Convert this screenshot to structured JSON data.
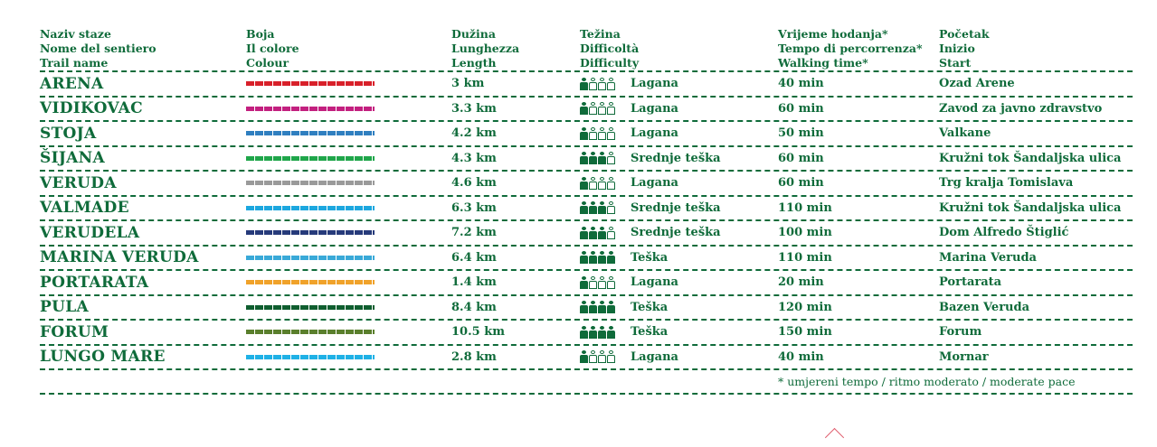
{
  "headers": {
    "name": [
      "Naziv staze",
      "Nome del sentiero",
      "Trail name"
    ],
    "color": [
      "Boja",
      "Il colore",
      "Colour"
    ],
    "length": [
      "Dužina",
      "Lunghezza",
      "Length"
    ],
    "difficulty": [
      "Težina",
      "Difficoltà",
      "Difficulty"
    ],
    "time": [
      "Vrijeme hodanja*",
      "Tempo di percorrenza*",
      "Walking time*"
    ],
    "start": [
      "Početak",
      "Inizio",
      "Start"
    ]
  },
  "rows": [
    {
      "name": "ARENA",
      "color": "#d8202a",
      "length": "3 km",
      "difficulty_level": 1,
      "difficulty": "Lagana",
      "time": "40 min",
      "start": "Ozad Arene"
    },
    {
      "name": "VIDIKOVAC",
      "color": "#c3207f",
      "length": "3.3 km",
      "difficulty_level": 1,
      "difficulty": "Lagana",
      "time": "60 min",
      "start": "Zavod za javno zdravstvo"
    },
    {
      "name": "STOJA",
      "color": "#2f7fc0",
      "length": "4.2 km",
      "difficulty_level": 1,
      "difficulty": "Lagana",
      "time": "50 min",
      "start": "Valkane"
    },
    {
      "name": "ŠIJANA",
      "color": "#1fa64a",
      "length": "4.3 km",
      "difficulty_level": 3,
      "difficulty": "Srednje teška",
      "time": "60 min",
      "start": "Kružni tok Šandaljska ulica"
    },
    {
      "name": "VERUDA",
      "color": "#9a9a9a",
      "length": "4.6 km",
      "difficulty_level": 1,
      "difficulty": "Lagana",
      "time": "60 min",
      "start": "Trg kralja Tomislava"
    },
    {
      "name": "VALMADE",
      "color": "#1ca7df",
      "length": "6.3 km",
      "difficulty_level": 3,
      "difficulty": "Srednje teška",
      "time": "110 min",
      "start": "Kružni tok Šandaljska ulica"
    },
    {
      "name": "VERUDELA",
      "color": "#263a7a",
      "length": "7.2 km",
      "difficulty_level": 3,
      "difficulty": "Srednje teška",
      "time": "100 min",
      "start": "Dom Alfredo Štiglić"
    },
    {
      "name": "MARINA VERUDA",
      "color": "#39a9d8",
      "length": "6.4 km",
      "difficulty_level": 4,
      "difficulty": "Teška",
      "time": "110 min",
      "start": "Marina Veruda"
    },
    {
      "name": "PORTARATA",
      "color": "#f0a22a",
      "length": "1.4 km",
      "difficulty_level": 1,
      "difficulty": "Lagana",
      "time": "20 min",
      "start": "Portarata"
    },
    {
      "name": "PULA",
      "color": "#0f5e2f",
      "length": "8.4 km",
      "difficulty_level": 4,
      "difficulty": "Teška",
      "time": "120 min",
      "start": "Bazen Veruda"
    },
    {
      "name": "FORUM",
      "color": "#5a7f2c",
      "length": "10.5 km",
      "difficulty_level": 4,
      "difficulty": "Teška",
      "time": "150 min",
      "start": "Forum"
    },
    {
      "name": "LUNGO MARE",
      "color": "#1fb1e6",
      "length": "2.8 km",
      "difficulty_level": 1,
      "difficulty": "Lagana",
      "time": "40 min",
      "start": "Mornar"
    }
  ],
  "footnote": "* umjereni tempo / ritmo moderato / moderate pace"
}
